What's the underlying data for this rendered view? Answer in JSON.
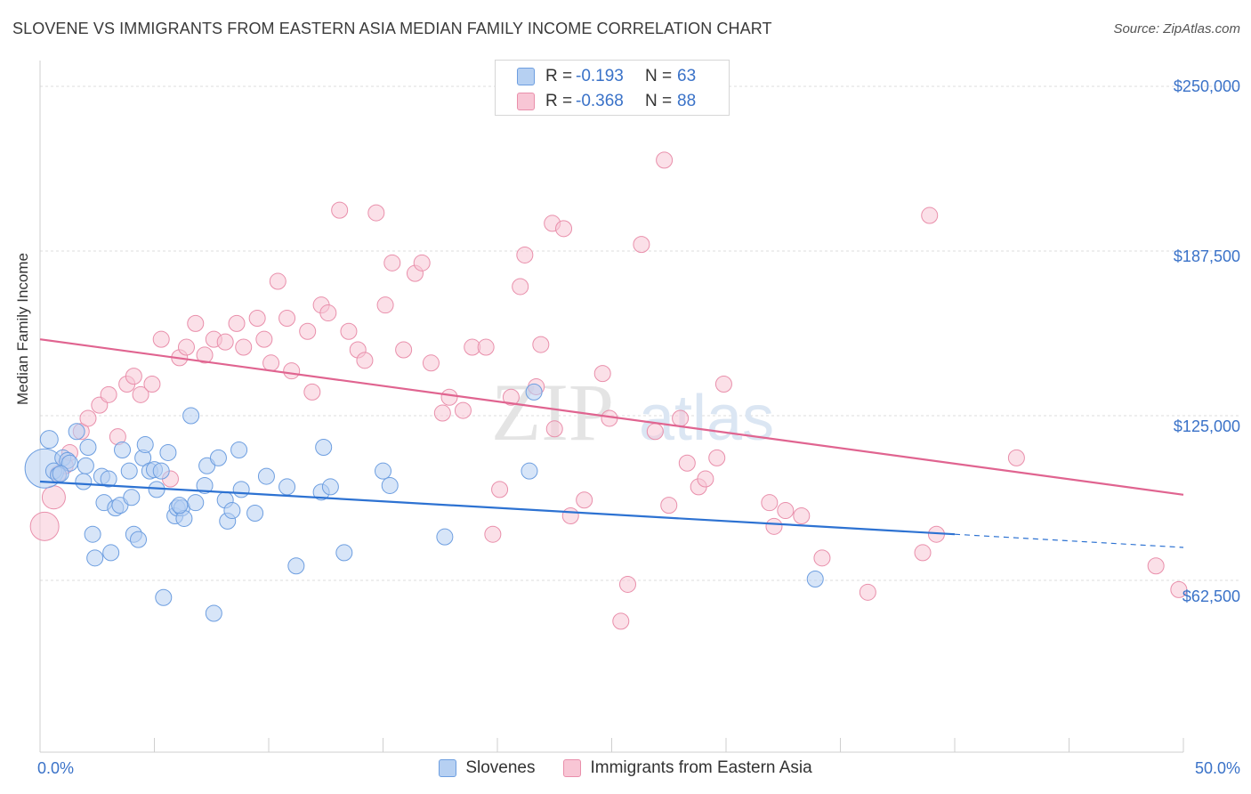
{
  "title": "SLOVENE VS IMMIGRANTS FROM EASTERN ASIA MEDIAN FAMILY INCOME CORRELATION CHART",
  "source": "Source: ZipAtlas.com",
  "watermark": {
    "zip": "ZIP",
    "atlas": "atlas"
  },
  "legend": {
    "rows": [
      {
        "r_label": "R =",
        "r_value": "-0.193",
        "n_label": "N =",
        "n_value": "63",
        "color": "#a9c8f0",
        "border": "#6b9ce0"
      },
      {
        "r_label": "R =",
        "r_value": "-0.368",
        "n_label": "N =",
        "n_value": "88",
        "color": "#f7c0d0",
        "border": "#e892ad"
      }
    ]
  },
  "bottom_legend": [
    "Slovenes",
    "Immigrants from Eastern Asia"
  ],
  "colors": {
    "blue": "#6d9ee0",
    "blue_fill": "#b6d0f2",
    "pink": "#e98fab",
    "pink_fill": "#f8c6d5",
    "blue_line": "#2d72d2",
    "pink_line": "#e06490",
    "axis_text": "#3a72c8"
  },
  "chart_data": {
    "type": "scatter",
    "title": "SLOVENE VS IMMIGRANTS FROM EASTERN ASIA MEDIAN FAMILY INCOME CORRELATION CHART",
    "xlabel": "",
    "ylabel": "Median Family Income",
    "xlim": [
      0,
      50
    ],
    "ylim": [
      0,
      262500
    ],
    "x_tick_labels": [
      "0.0%",
      "50.0%"
    ],
    "y_ticks": [
      62500,
      125000,
      187500,
      250000
    ],
    "y_tick_labels": [
      "$62,500",
      "$125,000",
      "$187,500",
      "$250,000"
    ],
    "grid": true,
    "legend_position": "top-center",
    "series": [
      {
        "name": "Slovenes",
        "trend": {
          "x": [
            0,
            40.0
          ],
          "y": [
            100000,
            80000
          ],
          "dashed_to": [
            50.0,
            75000
          ]
        },
        "points": [
          [
            0.2,
            105000,
            22
          ],
          [
            0.4,
            116000,
            10
          ],
          [
            0.6,
            104000,
            9
          ],
          [
            0.8,
            102500,
            9
          ],
          [
            1.0,
            109000,
            9
          ],
          [
            1.2,
            108000,
            9
          ],
          [
            1.6,
            119000,
            9
          ],
          [
            1.9,
            100000,
            9
          ],
          [
            2.1,
            113000,
            9
          ],
          [
            2.3,
            80000,
            9
          ],
          [
            2.4,
            71000,
            9
          ],
          [
            2.7,
            102000,
            9
          ],
          [
            2.8,
            92000,
            9
          ],
          [
            3.0,
            101000,
            9
          ],
          [
            3.1,
            73000,
            9
          ],
          [
            3.3,
            90000,
            9
          ],
          [
            3.5,
            91000,
            9
          ],
          [
            3.6,
            112000,
            9
          ],
          [
            3.9,
            104000,
            9
          ],
          [
            4.0,
            94000,
            9
          ],
          [
            4.1,
            80000,
            9
          ],
          [
            4.3,
            78000,
            9
          ],
          [
            4.5,
            109000,
            9
          ],
          [
            4.6,
            114000,
            9
          ],
          [
            4.8,
            104000,
            9
          ],
          [
            5.0,
            104500,
            9
          ],
          [
            5.1,
            97000,
            9
          ],
          [
            5.3,
            104000,
            9
          ],
          [
            5.4,
            56000,
            9
          ],
          [
            5.6,
            111000,
            9
          ],
          [
            5.9,
            87000,
            9
          ],
          [
            6.0,
            90000,
            9
          ],
          [
            6.2,
            90000,
            9
          ],
          [
            6.3,
            86000,
            9
          ],
          [
            6.6,
            125000,
            9
          ],
          [
            6.8,
            92000,
            9
          ],
          [
            7.2,
            98500,
            9
          ],
          [
            7.3,
            106000,
            9
          ],
          [
            7.6,
            50000,
            9
          ],
          [
            7.8,
            109000,
            9
          ],
          [
            8.1,
            93000,
            9
          ],
          [
            8.2,
            85000,
            9
          ],
          [
            8.4,
            89000,
            9
          ],
          [
            8.7,
            112000,
            9
          ],
          [
            8.8,
            97000,
            9
          ],
          [
            9.4,
            88000,
            9
          ],
          [
            9.9,
            102000,
            9
          ],
          [
            10.8,
            98000,
            9
          ],
          [
            11.2,
            68000,
            9
          ],
          [
            12.3,
            96000,
            9
          ],
          [
            12.4,
            113000,
            9
          ],
          [
            12.7,
            98000,
            9
          ],
          [
            13.3,
            73000,
            9
          ],
          [
            15.0,
            104000,
            9
          ],
          [
            15.3,
            98500,
            9
          ],
          [
            17.7,
            79000,
            9
          ],
          [
            21.4,
            104000,
            9
          ],
          [
            21.6,
            134000,
            9
          ],
          [
            33.9,
            63000,
            9
          ],
          [
            1.3,
            107000,
            9
          ],
          [
            0.9,
            103000,
            9
          ],
          [
            2.0,
            106000,
            9
          ],
          [
            6.1,
            91000,
            9
          ]
        ]
      },
      {
        "name": "Immigrants from Eastern Asia",
        "trend": {
          "x": [
            0,
            50.0
          ],
          "y": [
            154000,
            95000
          ]
        },
        "points": [
          [
            0.2,
            83000,
            16
          ],
          [
            0.6,
            94000,
            13
          ],
          [
            0.8,
            103000,
            9
          ],
          [
            1.1,
            106000,
            9
          ],
          [
            1.3,
            111000,
            9
          ],
          [
            1.8,
            119000,
            9
          ],
          [
            2.1,
            124000,
            9
          ],
          [
            2.6,
            129000,
            9
          ],
          [
            3.0,
            133000,
            9
          ],
          [
            3.4,
            117000,
            9
          ],
          [
            3.8,
            137000,
            9
          ],
          [
            4.1,
            140000,
            9
          ],
          [
            4.4,
            133000,
            9
          ],
          [
            4.9,
            137000,
            9
          ],
          [
            5.3,
            154000,
            9
          ],
          [
            5.7,
            101000,
            9
          ],
          [
            6.1,
            147000,
            9
          ],
          [
            6.4,
            151000,
            9
          ],
          [
            6.8,
            160000,
            9
          ],
          [
            7.2,
            148000,
            9
          ],
          [
            7.6,
            154000,
            9
          ],
          [
            8.1,
            153000,
            9
          ],
          [
            8.6,
            160000,
            9
          ],
          [
            8.9,
            151000,
            9
          ],
          [
            9.5,
            162000,
            9
          ],
          [
            9.8,
            154000,
            9
          ],
          [
            10.1,
            145000,
            9
          ],
          [
            10.4,
            176000,
            9
          ],
          [
            10.8,
            162000,
            9
          ],
          [
            11.0,
            142000,
            9
          ],
          [
            11.7,
            157000,
            9
          ],
          [
            11.9,
            134000,
            9
          ],
          [
            12.3,
            167000,
            9
          ],
          [
            12.6,
            164000,
            9
          ],
          [
            13.1,
            203000,
            9
          ],
          [
            13.5,
            157000,
            9
          ],
          [
            13.9,
            150000,
            9
          ],
          [
            14.2,
            146000,
            9
          ],
          [
            14.7,
            202000,
            9
          ],
          [
            15.1,
            167000,
            9
          ],
          [
            15.4,
            183000,
            9
          ],
          [
            15.9,
            150000,
            9
          ],
          [
            16.4,
            179000,
            9
          ],
          [
            16.7,
            183000,
            9
          ],
          [
            17.1,
            145000,
            9
          ],
          [
            17.6,
            126000,
            9
          ],
          [
            17.9,
            132000,
            9
          ],
          [
            18.5,
            127000,
            9
          ],
          [
            18.9,
            151000,
            9
          ],
          [
            19.5,
            151000,
            9
          ],
          [
            19.8,
            80000,
            9
          ],
          [
            20.1,
            97000,
            9
          ],
          [
            20.6,
            132000,
            9
          ],
          [
            21.0,
            174000,
            9
          ],
          [
            21.2,
            186000,
            9
          ],
          [
            21.7,
            136000,
            9
          ],
          [
            21.9,
            152000,
            9
          ],
          [
            22.4,
            198000,
            9
          ],
          [
            22.5,
            120000,
            9
          ],
          [
            22.9,
            196000,
            9
          ],
          [
            23.2,
            87000,
            9
          ],
          [
            23.8,
            93000,
            9
          ],
          [
            24.6,
            141000,
            9
          ],
          [
            24.9,
            124000,
            9
          ],
          [
            25.7,
            61000,
            9
          ],
          [
            25.4,
            47000,
            9
          ],
          [
            26.3,
            190000,
            9
          ],
          [
            26.9,
            119000,
            9
          ],
          [
            27.3,
            222000,
            9
          ],
          [
            27.5,
            91000,
            9
          ],
          [
            28.0,
            124000,
            9
          ],
          [
            28.3,
            107000,
            9
          ],
          [
            28.8,
            98000,
            9
          ],
          [
            29.1,
            101000,
            9
          ],
          [
            29.6,
            109000,
            9
          ],
          [
            29.9,
            137000,
            9
          ],
          [
            31.9,
            92000,
            9
          ],
          [
            32.1,
            83000,
            9
          ],
          [
            32.6,
            89000,
            9
          ],
          [
            33.3,
            87000,
            9
          ],
          [
            34.2,
            71000,
            9
          ],
          [
            36.2,
            58000,
            9
          ],
          [
            38.6,
            73000,
            9
          ],
          [
            38.9,
            201000,
            9
          ],
          [
            39.2,
            80000,
            9
          ],
          [
            42.7,
            109000,
            9
          ],
          [
            48.8,
            68000,
            9
          ],
          [
            49.8,
            59000,
            9
          ]
        ]
      }
    ]
  }
}
